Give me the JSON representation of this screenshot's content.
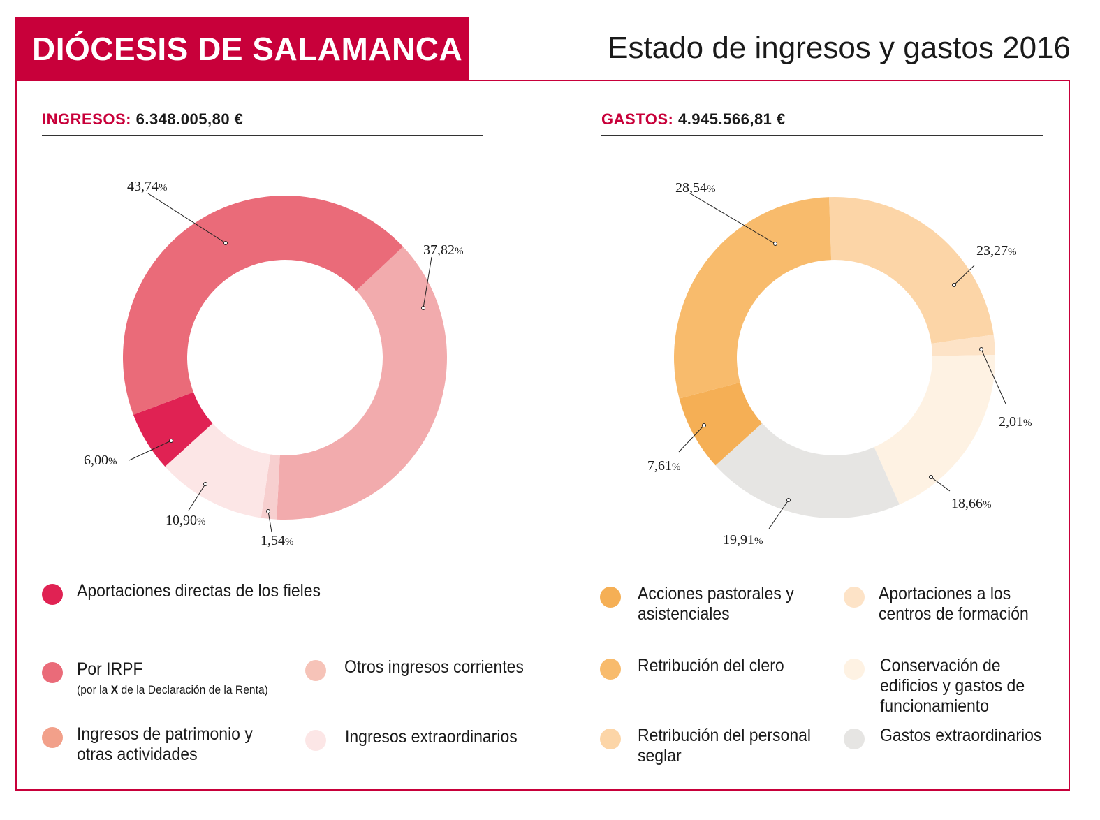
{
  "header": {
    "title": "DIÓCESIS DE SALAMANCA",
    "subtitle": "Estado de ingresos y gastos 2016"
  },
  "colors": {
    "brand": "#c8003a"
  },
  "ingresos": {
    "label": "INGRESOS:",
    "amount": "6.348.005,80 €"
  },
  "gastos": {
    "label": "GASTOS:",
    "amount": "4.945.566,81 €"
  },
  "chart_data": [
    {
      "type": "pie",
      "donut": true,
      "title": "INGRESOS: 6.348.005,80 €",
      "start_angle_deg": 46.8,
      "direction": "clockwise",
      "slices": [
        {
          "label": "Otros ingresos corrientes",
          "value": 37.82,
          "display": "37,82",
          "color": "#f2abad"
        },
        {
          "label": "Ingresos de patrimonio y otras actividades",
          "value": 1.54,
          "display": "1,54",
          "color": "#f7cfcf"
        },
        {
          "label": "Ingresos extraordinarios",
          "value": 10.9,
          "display": "10,90",
          "color": "#fce6e6"
        },
        {
          "label": "Aportaciones directas de los fieles",
          "value": 6.0,
          "display": "6,00",
          "color": "#e02253"
        },
        {
          "label": "Por IRPF",
          "value": 43.74,
          "display": "43,74",
          "color": "#ea6b79"
        }
      ],
      "percent_symbol": "%"
    },
    {
      "type": "pie",
      "donut": true,
      "title": "GASTOS: 4.945.566,81 €",
      "start_angle_deg": -2,
      "direction": "clockwise",
      "slices": [
        {
          "label": "Retribución del personal seglar",
          "value": 23.27,
          "display": "23,27",
          "color": "#fcd5a7"
        },
        {
          "label": "Aportaciones a los centros de formación",
          "value": 2.01,
          "display": "2,01",
          "color": "#fde3c7"
        },
        {
          "label": "Conservación de edificios y gastos de funcionamiento",
          "value": 18.66,
          "display": "18,66",
          "color": "#fef2e3"
        },
        {
          "label": "Gastos extraordinarios",
          "value": 19.91,
          "display": "19,91",
          "color": "#e6e5e3"
        },
        {
          "label": "Acciones pastorales y asistenciales",
          "value": 7.61,
          "display": "7,61",
          "color": "#f5af55"
        },
        {
          "label": "Retribución del clero",
          "value": 28.54,
          "display": "28,54",
          "color": "#f8bb6c"
        }
      ],
      "percent_symbol": "%"
    }
  ],
  "legend_ingresos": [
    {
      "label": "Aportaciones directas de los fieles",
      "color": "#e02253"
    },
    {
      "label": "Por IRPF",
      "sub_before": "(por la ",
      "sub_bold": "X",
      "sub_after": " de la Declaración de la Renta)",
      "color": "#ea6b79"
    },
    {
      "label": "Otros ingresos corrientes",
      "color": "#f6c3b8"
    },
    {
      "label": "Ingresos de patrimonio y otras actividades",
      "color": "#f2a08a"
    },
    {
      "label": "Ingresos extraordinarios",
      "color": "#fce6e6"
    }
  ],
  "legend_gastos": [
    {
      "label": "Acciones pastorales y asistenciales",
      "color": "#f5af55"
    },
    {
      "label": "Aportaciones a los centros de formación",
      "color": "#fde3c7"
    },
    {
      "label": "Retribución del clero",
      "color": "#f8bb6c"
    },
    {
      "label": "Conservación de edificios y gastos de funcionamiento",
      "color": "#fef2e3"
    },
    {
      "label": "Retribución del personal seglar",
      "color": "#fcd5a7"
    },
    {
      "label": "Gastos extraordinarios",
      "color": "#e6e5e3"
    }
  ]
}
